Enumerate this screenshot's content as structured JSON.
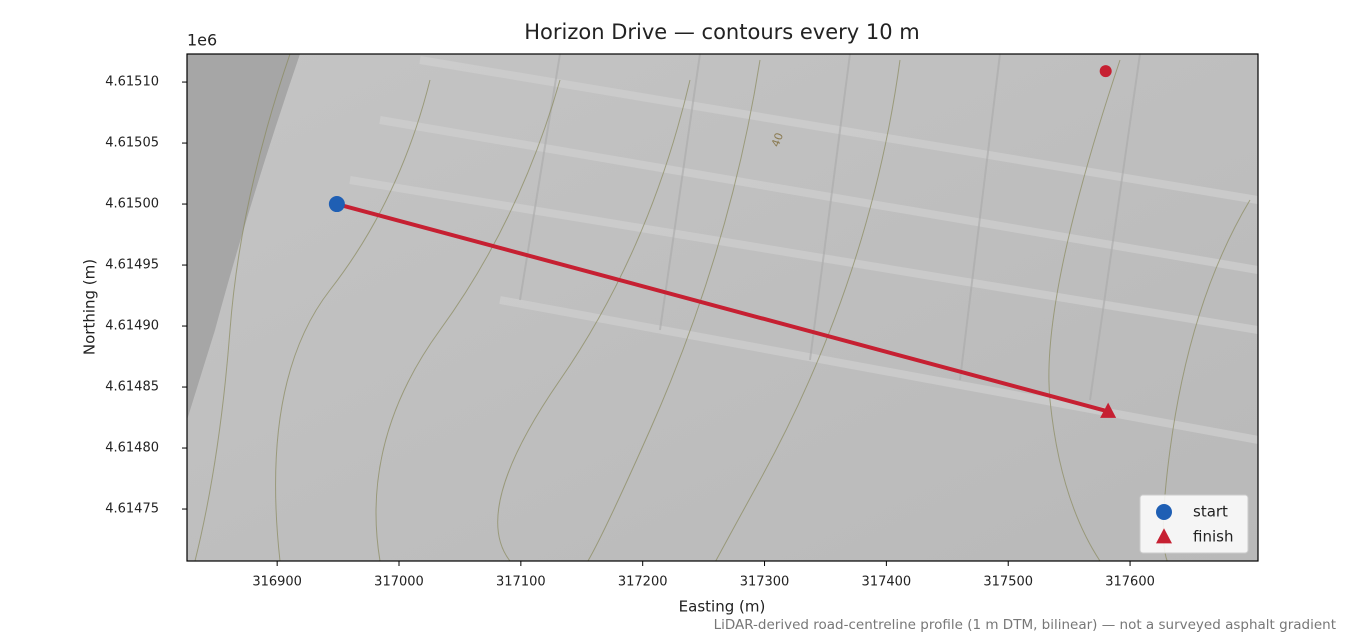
{
  "chart_data": {
    "type": "line",
    "title": "Horizon Drive — contours every 10 m",
    "xlabel": "Easting (m)",
    "ylabel": "Northing (m)",
    "y_offset_label": "1e6",
    "xlim": [
      316826,
      317705
    ],
    "ylim": [
      4.6147074,
      4.615123
    ],
    "xticks": [
      316900,
      317000,
      317100,
      317200,
      317300,
      317400,
      317500,
      317600
    ],
    "yticks": [
      {
        "value": 4.61475,
        "label": "4.61475"
      },
      {
        "value": 4.6148,
        "label": "4.61480"
      },
      {
        "value": 4.61485,
        "label": "4.61485"
      },
      {
        "value": 4.6149,
        "label": "4.61490"
      },
      {
        "value": 4.61495,
        "label": "4.61495"
      },
      {
        "value": 4.615,
        "label": "4.61500"
      },
      {
        "value": 4.61505,
        "label": "4.61505"
      },
      {
        "value": 4.6151,
        "label": "4.61510"
      }
    ],
    "route": {
      "x": [
        316949,
        317582
      ],
      "y": [
        4.615,
        4.61483
      ],
      "color": "#c62032"
    },
    "markers": [
      {
        "name": "start",
        "x": 316949,
        "y": 4.615,
        "color": "#1f5fb4",
        "shape": "circle"
      },
      {
        "name": "finish",
        "x": 317582,
        "y": 4.61483,
        "color": "#c62032",
        "shape": "triangle"
      }
    ],
    "point": {
      "x": 317580,
      "y": 4.615109,
      "color": "#c62032"
    },
    "contour_label": "40",
    "legend": "lower right",
    "footnote": "LiDAR-derived road-centreline profile (1 m DTM, bilinear) — not a surveyed asphalt gradient"
  }
}
